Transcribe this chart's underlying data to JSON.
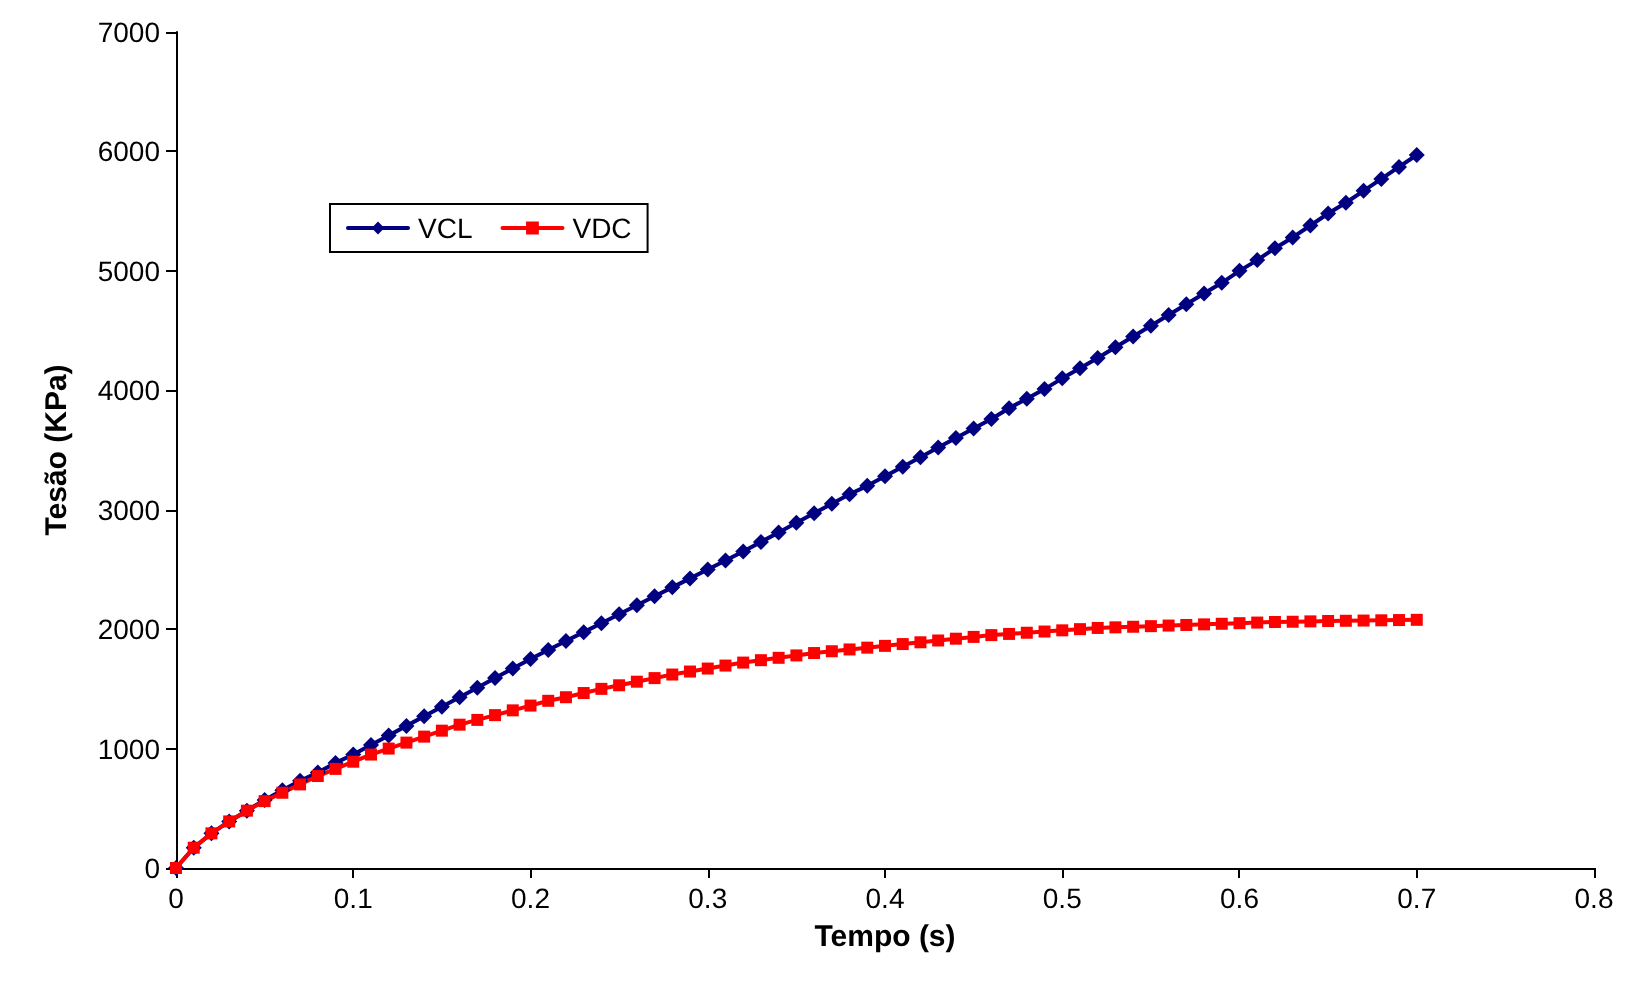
{
  "chart_data": {
    "type": "line",
    "xlabel": "Tempo (s)",
    "ylabel": "Tesão (KPa)",
    "x": [
      0,
      0.01,
      0.02,
      0.03,
      0.04,
      0.05,
      0.06,
      0.07,
      0.08,
      0.09,
      0.1,
      0.11,
      0.12,
      0.13,
      0.14,
      0.15,
      0.16,
      0.17,
      0.18,
      0.19,
      0.2,
      0.21,
      0.22,
      0.23,
      0.24,
      0.25,
      0.26,
      0.27,
      0.28,
      0.29,
      0.3,
      0.31,
      0.32,
      0.33,
      0.34,
      0.35,
      0.36,
      0.37,
      0.38,
      0.39,
      0.4,
      0.41,
      0.42,
      0.43,
      0.44,
      0.45,
      0.46,
      0.47,
      0.48,
      0.49,
      0.5,
      0.51,
      0.52,
      0.53,
      0.54,
      0.55,
      0.56,
      0.57,
      0.58,
      0.59,
      0.6,
      0.61,
      0.62,
      0.63,
      0.64,
      0.65,
      0.66,
      0.67,
      0.68,
      0.69,
      0.7
    ],
    "series": [
      {
        "name": "VCL",
        "color": "#000080",
        "marker": "diamond",
        "values": [
          0,
          170,
          290,
          390,
          480,
          570,
          650,
          730,
          800,
          880,
          950,
          1030,
          1110,
          1190,
          1270,
          1350,
          1430,
          1510,
          1590,
          1670,
          1750,
          1825,
          1900,
          1975,
          2050,
          2125,
          2200,
          2275,
          2350,
          2425,
          2500,
          2575,
          2650,
          2730,
          2810,
          2890,
          2970,
          3050,
          3130,
          3200,
          3280,
          3360,
          3440,
          3520,
          3600,
          3680,
          3760,
          3850,
          3930,
          4010,
          4100,
          4185,
          4270,
          4360,
          4450,
          4540,
          4630,
          4720,
          4810,
          4900,
          5000,
          5090,
          5190,
          5280,
          5380,
          5480,
          5570,
          5670,
          5770,
          5870,
          5970
        ]
      },
      {
        "name": "VDC",
        "color": "#ff0000",
        "marker": "square",
        "values": [
          0,
          170,
          290,
          390,
          480,
          560,
          630,
          700,
          770,
          830,
          890,
          950,
          1000,
          1050,
          1100,
          1150,
          1200,
          1240,
          1280,
          1320,
          1360,
          1400,
          1430,
          1465,
          1500,
          1530,
          1560,
          1590,
          1620,
          1645,
          1670,
          1695,
          1720,
          1740,
          1760,
          1780,
          1800,
          1815,
          1830,
          1845,
          1860,
          1875,
          1890,
          1905,
          1920,
          1935,
          1950,
          1960,
          1970,
          1980,
          1990,
          2000,
          2010,
          2015,
          2020,
          2025,
          2030,
          2035,
          2040,
          2045,
          2050,
          2055,
          2060,
          2062,
          2065,
          2068,
          2070,
          2072,
          2074,
          2076,
          2078
        ]
      }
    ],
    "xlim": [
      0,
      0.8
    ],
    "xticks": [
      0,
      0.1,
      0.2,
      0.3,
      0.4,
      0.5,
      0.6,
      0.7,
      0.8
    ],
    "ylim": [
      0,
      7000
    ],
    "yticks": [
      0,
      1000,
      2000,
      3000,
      4000,
      5000,
      6000,
      7000
    ],
    "grid": false,
    "legend": "top left",
    "line_style": "solid"
  }
}
